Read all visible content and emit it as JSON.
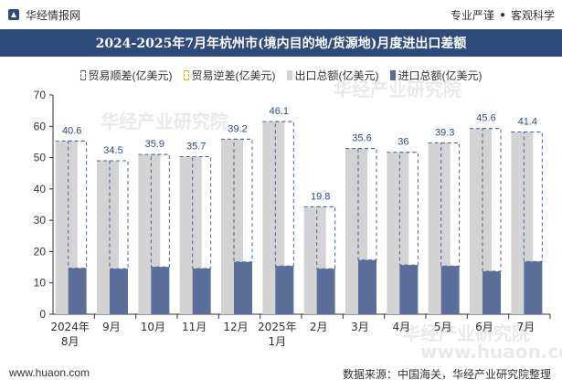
{
  "header": {
    "brand": "华经情报网",
    "tag_1": "专业严谨",
    "tag_sep": "●",
    "tag_2": "客观科学"
  },
  "title": "2024-2025年7月年杭州市(境内目的地/货源地)月度进出口差额",
  "watermarks": [
    "华经产业研究院",
    "华经产业研究院",
    "华经产业研究院",
    "www.huaon.com"
  ],
  "footer": {
    "left": "www.huaon.com",
    "right": "数据来源：中国海关，华经产业研究院整理"
  },
  "colors": {
    "title_bg": "#2f4b7c",
    "export": "#d3d3d3",
    "import": "#5b6e9a",
    "shun_border": "#4a6a9a",
    "ni_border": "#d9b600",
    "label": "#2f4b7c"
  },
  "chart_data": {
    "type": "bar",
    "categories": [
      [
        "2024年",
        "8月"
      ],
      [
        "9月"
      ],
      [
        "10月"
      ],
      [
        "11月"
      ],
      [
        "12月"
      ],
      [
        "2025年",
        "1月"
      ],
      [
        "2月"
      ],
      [
        "3月"
      ],
      [
        "4月"
      ],
      [
        "5月"
      ],
      [
        "6月"
      ],
      [
        "7月"
      ]
    ],
    "series": [
      {
        "name": "贸易顺差(亿美元)",
        "values": [
          40.6,
          34.5,
          35.9,
          35.7,
          39.2,
          46.1,
          19.8,
          35.6,
          36,
          39.3,
          45.6,
          41.4
        ]
      },
      {
        "name": "贸易逆差(亿美元)",
        "values": [
          0,
          0,
          0,
          0,
          0,
          0,
          0,
          0,
          0,
          0,
          0,
          0
        ]
      },
      {
        "name": "出口总额(亿美元)",
        "values": [
          55.3,
          49.0,
          51.0,
          50.3,
          55.9,
          61.5,
          34.3,
          52.9,
          51.7,
          54.7,
          59.3,
          58.2
        ]
      },
      {
        "name": "进口总额(亿美元)",
        "values": [
          14.7,
          14.5,
          15.1,
          14.6,
          16.7,
          15.4,
          14.5,
          17.3,
          15.7,
          15.4,
          13.7,
          16.8
        ]
      }
    ],
    "data_labels": [
      "40.6",
      "34.5",
      "35.9",
      "35.7",
      "39.2",
      "46.1",
      "19.8",
      "35.6",
      "36",
      "39.3",
      "45.6",
      "41.4"
    ],
    "y_ticks": [
      "0",
      "10",
      "20",
      "30",
      "40",
      "50",
      "60",
      "70"
    ],
    "ylim": [
      0,
      70
    ],
    "grid": false,
    "legend_position": "top"
  }
}
